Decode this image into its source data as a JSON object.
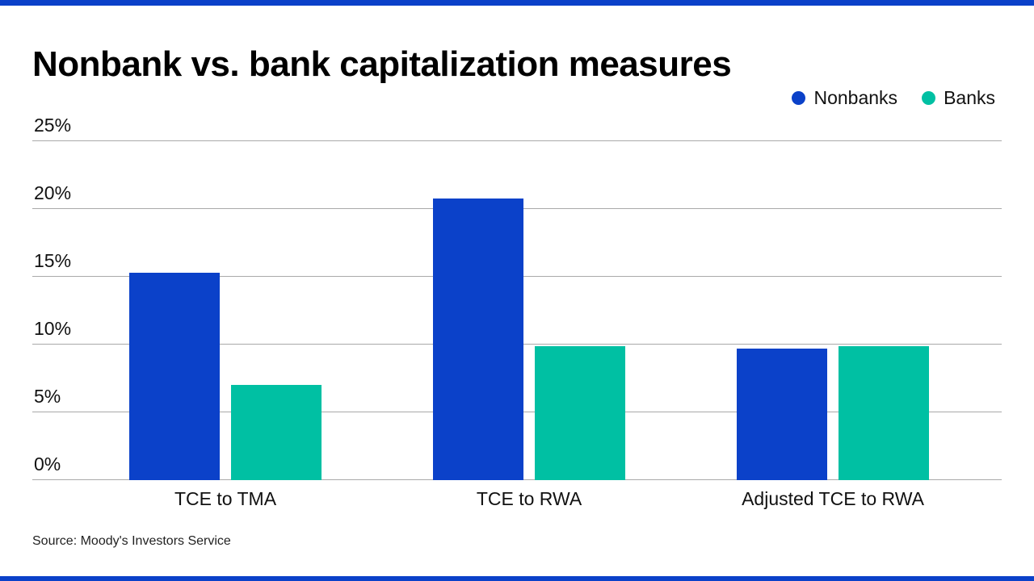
{
  "header": {
    "title": "Nonbank vs. bank capitalization measures"
  },
  "footer": {
    "source": "Source: Moody's Investors Service"
  },
  "colors": {
    "accent_bar": "#0b41c9",
    "nonbanks": "#0b41c9",
    "banks": "#00c0a3",
    "gridline": "#a9a9a9"
  },
  "chart_data": {
    "type": "bar",
    "title": "Nonbank vs. bank capitalization measures",
    "categories": [
      "TCE to TMA",
      "TCE to RWA",
      "Adjusted TCE to RWA"
    ],
    "series": [
      {
        "name": "Nonbanks",
        "color": "#0b41c9",
        "values": [
          15.3,
          20.8,
          9.7
        ]
      },
      {
        "name": "Banks",
        "color": "#00c0a3",
        "values": [
          7.0,
          9.9,
          9.9
        ]
      }
    ],
    "xlabel": "",
    "ylabel": "",
    "ylim": [
      0,
      25
    ],
    "yticks": [
      0,
      5,
      10,
      15,
      20,
      25
    ],
    "ytick_suffix": "%",
    "grid": true,
    "legend_position": "top-right",
    "source": "Source: Moody's Investors Service"
  }
}
